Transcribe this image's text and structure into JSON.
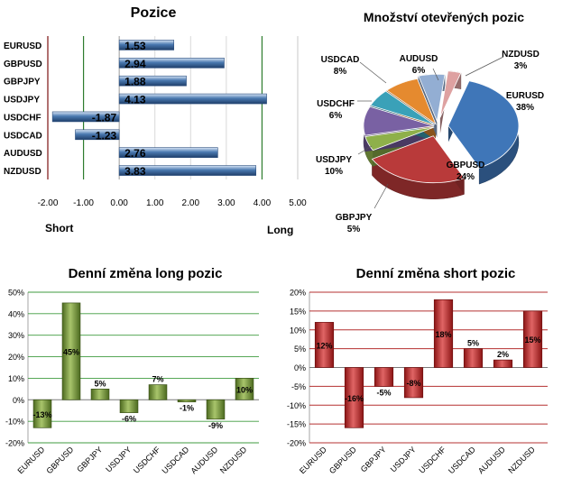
{
  "colors": {
    "bar_blue": "#4a79b0",
    "bar_green": "#6f8f32",
    "bar_red": "#c0262a",
    "axis_dark_red": "#7d1111",
    "grid_green": "#2e7d2e",
    "grid_red": "#a31b1b"
  },
  "positions_chart": {
    "title": "Pozice",
    "short_label": "Short",
    "long_label": "Long",
    "chart_data": {
      "type": "bar",
      "orientation": "horizontal",
      "categories": [
        "EURUSD",
        "GBPUSD",
        "GBPJPY",
        "USDJPY",
        "USDCHF",
        "USDCAD",
        "AUDUSD",
        "NZDUSD"
      ],
      "values": [
        1.53,
        2.94,
        1.88,
        4.13,
        -1.87,
        -1.23,
        2.76,
        3.83
      ],
      "value_labels": [
        "1.53",
        "2.94",
        "1.88",
        "4.13",
        "-1.87",
        "-1.23",
        "2.76",
        "3.83"
      ],
      "xlim": [
        -2,
        5
      ],
      "xticks": [
        -2,
        -1,
        0,
        1,
        2,
        3,
        4,
        5
      ],
      "xtick_labels": [
        "-2.00",
        "-1.00",
        "0.00",
        "1.00",
        "2.00",
        "3.00",
        "4.00",
        "5.00"
      ],
      "grid": true
    }
  },
  "pie_chart": {
    "title": "Množství otevřených pozic",
    "chart_data": {
      "type": "pie",
      "style": "3d-exploded",
      "slices": [
        {
          "label": "EURUSD",
          "value": 38,
          "value_label": "38%",
          "color": "#3f76b8"
        },
        {
          "label": "GBPUSD",
          "value": 24,
          "value_label": "24%",
          "color": "#b93a3a"
        },
        {
          "label": "GBPJPY",
          "value": 5,
          "value_label": "5%",
          "color": "#8eb04a"
        },
        {
          "label": "USDJPY",
          "value": 10,
          "value_label": "10%",
          "color": "#7961a3"
        },
        {
          "label": "USDCHF",
          "value": 6,
          "value_label": "6%",
          "color": "#3aa1b8"
        },
        {
          "label": "USDCAD",
          "value": 8,
          "value_label": "8%",
          "color": "#e58a2f"
        },
        {
          "label": "AUDUSD",
          "value": 6,
          "value_label": "6%",
          "color": "#93aed3"
        },
        {
          "label": "NZDUSD",
          "value": 3,
          "value_label": "3%",
          "color": "#dea1a1"
        }
      ]
    }
  },
  "long_chart": {
    "title": "Denní změna long pozic",
    "chart_data": {
      "type": "bar",
      "categories": [
        "EURUSD",
        "GBPUSD",
        "GBPJPY",
        "USDJPY",
        "USDCHF",
        "USDCAD",
        "AUDUSD",
        "NZDUSD"
      ],
      "values": [
        -13,
        45,
        5,
        -6,
        7,
        -1,
        -9,
        10
      ],
      "value_labels": [
        "-13%",
        "45%",
        "5%",
        "-6%",
        "7%",
        "-1%",
        "-9%",
        "10%"
      ],
      "ylim": [
        -20,
        50
      ],
      "yticks": [
        -20,
        -10,
        0,
        10,
        20,
        30,
        40,
        50
      ],
      "ytick_labels": [
        "-20%",
        "-10%",
        "0%",
        "10%",
        "20%",
        "30%",
        "40%",
        "50%"
      ],
      "grid": true
    }
  },
  "short_chart": {
    "title": "Denní změna short pozic",
    "chart_data": {
      "type": "bar",
      "categories": [
        "EURUSD",
        "GBPUSD",
        "GBPJPY",
        "USDJPY",
        "USDCHF",
        "USDCAD",
        "AUDUSD",
        "NZDUSD"
      ],
      "values": [
        12,
        -16,
        -5,
        -8,
        18,
        5,
        2,
        15
      ],
      "value_labels": [
        "12%",
        "-16%",
        "-5%",
        "-8%",
        "18%",
        "5%",
        "2%",
        "15%"
      ],
      "ylim": [
        -20,
        20
      ],
      "yticks": [
        -20,
        -15,
        -10,
        -5,
        0,
        5,
        10,
        15,
        20
      ],
      "ytick_labels": [
        "-20%",
        "-15%",
        "-10%",
        "-5%",
        "0%",
        "5%",
        "10%",
        "15%",
        "20%"
      ],
      "grid": true
    }
  }
}
